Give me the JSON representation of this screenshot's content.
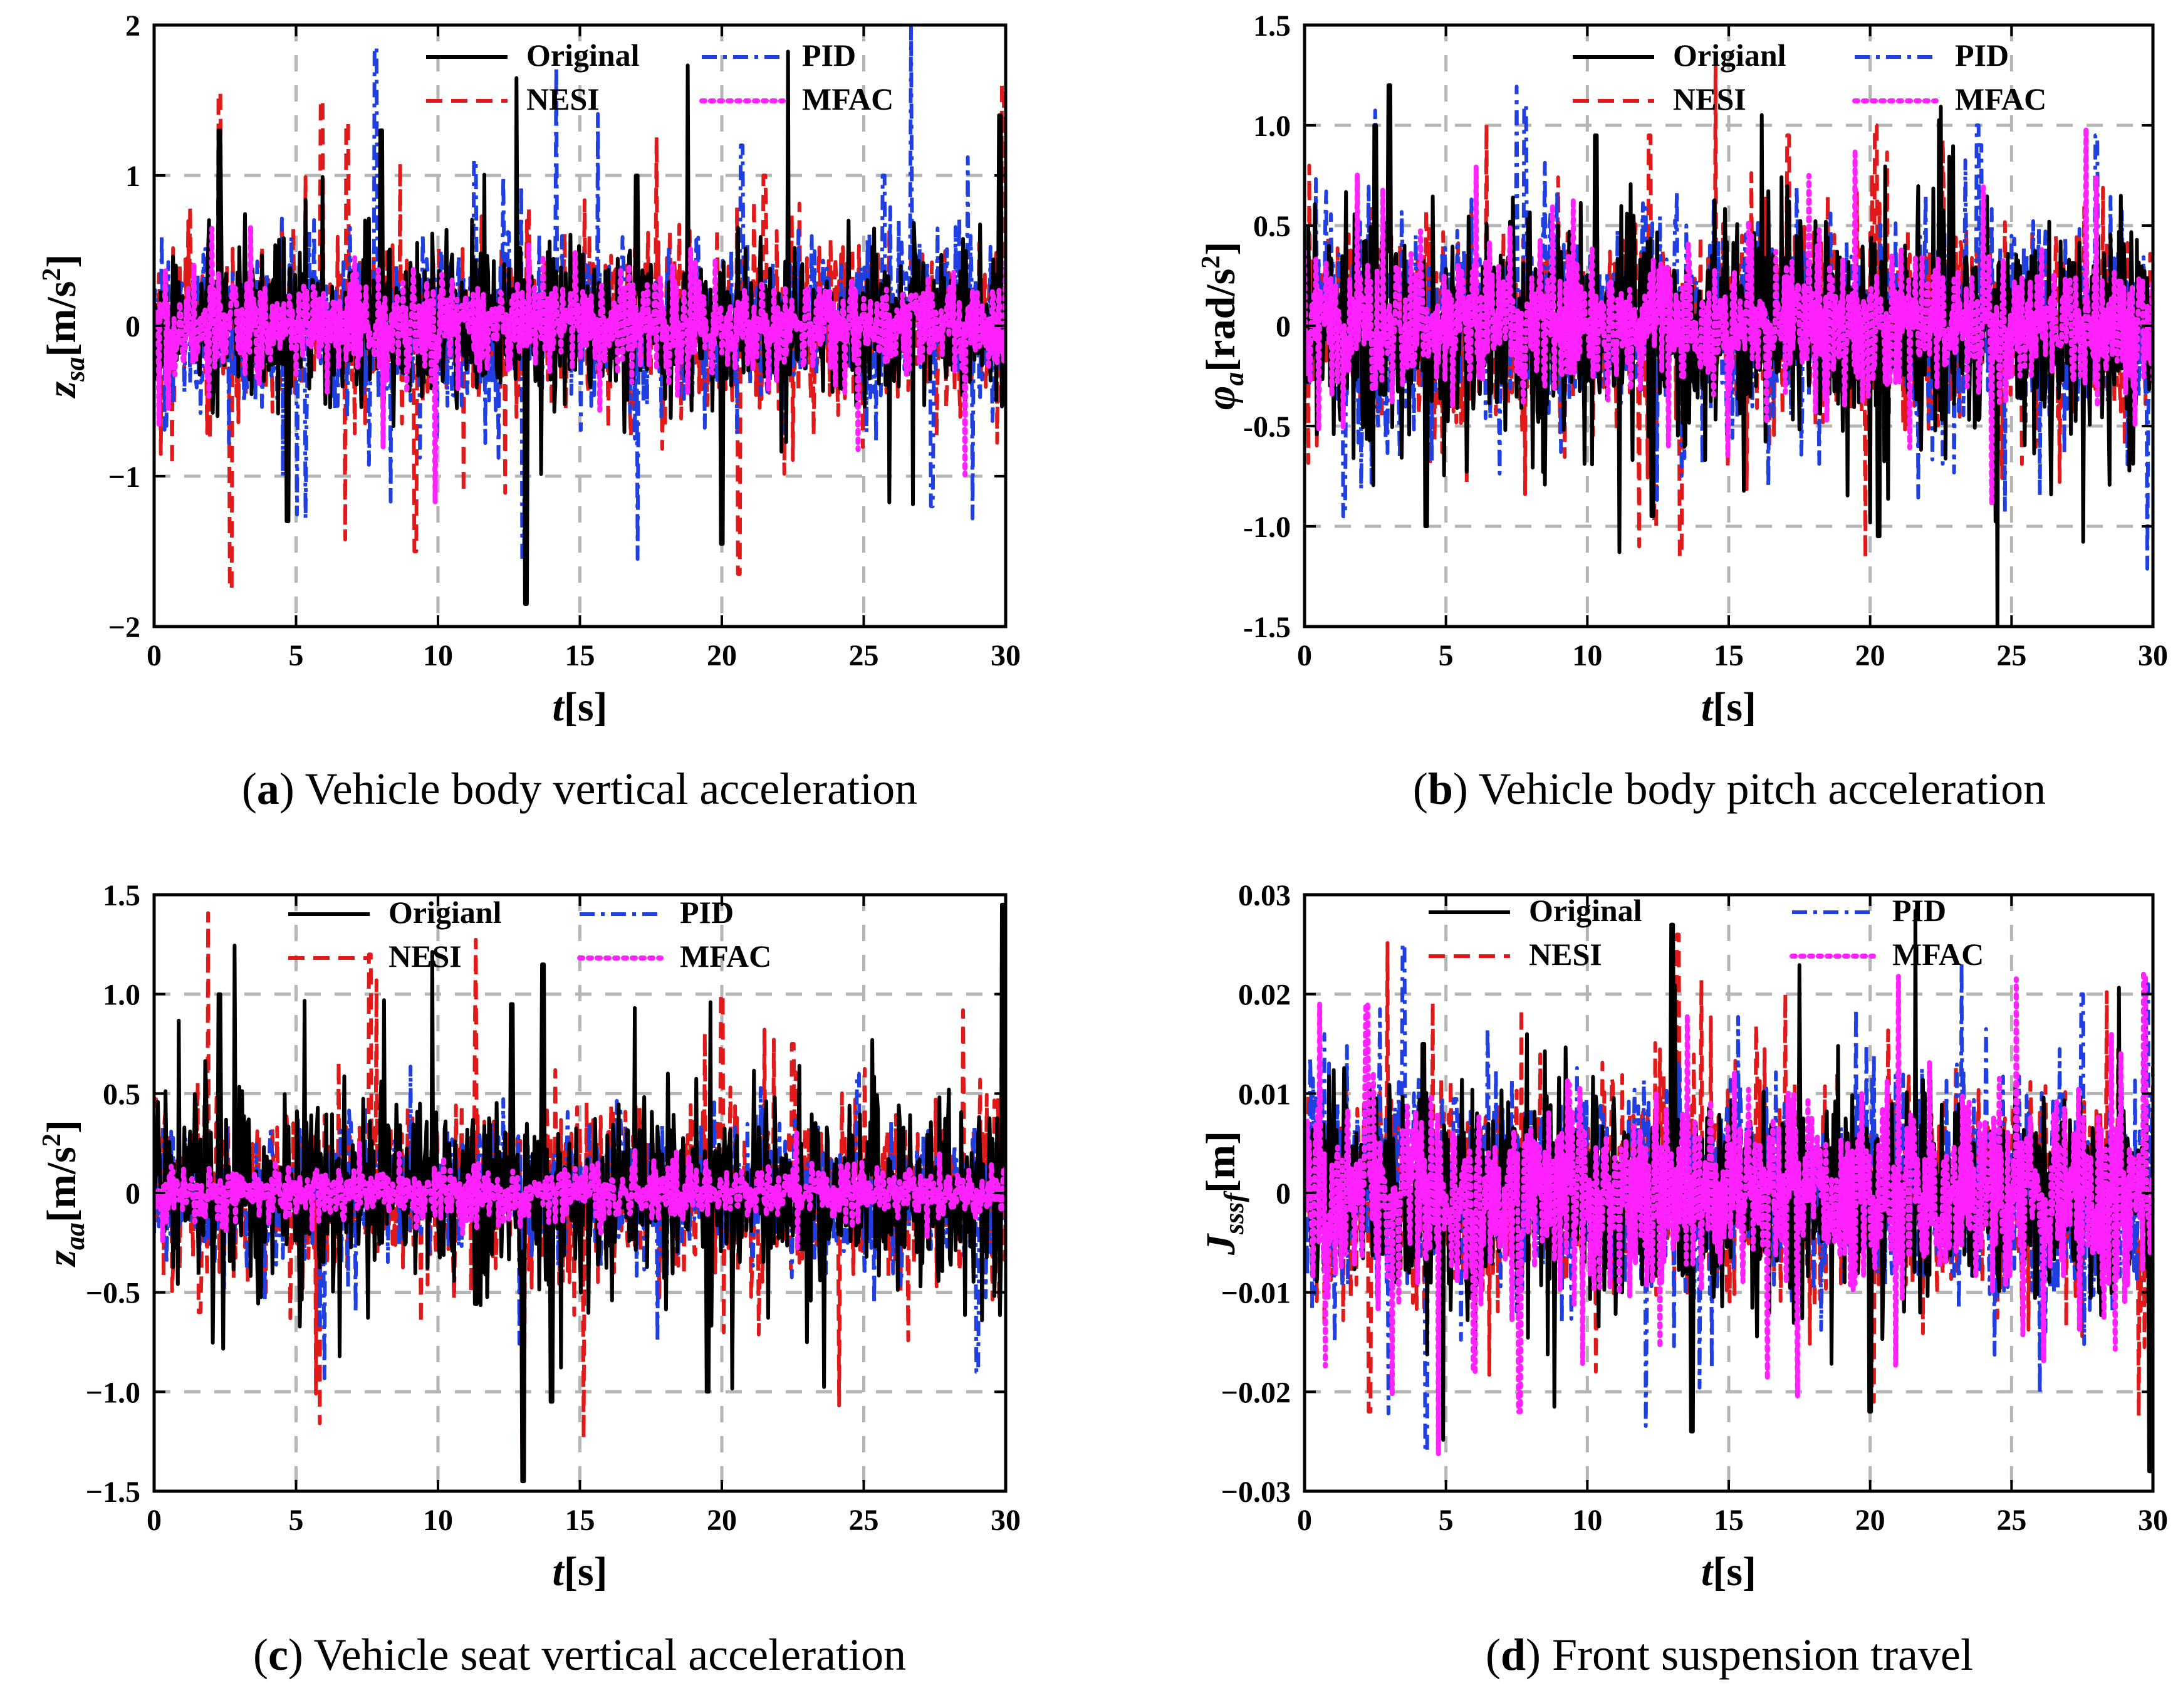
{
  "chart_data": [
    {
      "panel": "a",
      "type": "line",
      "caption": {
        "letter": "a",
        "text": "Vehicle body vertical acceleration"
      },
      "ylabel": {
        "main": "z",
        "sub": "sa",
        "unit": "[m/s",
        "sup": "2",
        "close": "]"
      },
      "xlabel": {
        "main": "t",
        "unit": "[s]"
      },
      "xlim": [
        0,
        30
      ],
      "ylim": [
        -2,
        2
      ],
      "xticks": [
        0,
        5,
        10,
        15,
        20,
        25,
        30
      ],
      "yticks": [
        2,
        1,
        0,
        -1,
        -2
      ],
      "ytick_labels": [
        "2",
        "1",
        "0",
        "−1",
        "−2"
      ],
      "grid": true,
      "legend_placement": "top",
      "series": [
        {
          "name": "Original",
          "color": "#000000",
          "style": "solid",
          "amplitude": 0.45,
          "peaks": [
            [
              2.3,
              1.3
            ],
            [
              4.7,
              -1.3
            ],
            [
              8.0,
              1.3
            ],
            [
              13.1,
              -1.85
            ],
            [
              17.0,
              1.0
            ],
            [
              20.0,
              -1.45
            ],
            [
              29.8,
              1.4
            ]
          ]
        },
        {
          "name": "PID",
          "color": "#1f3fe0",
          "style": "dashdot",
          "amplitude": 0.5,
          "peaks": [
            [
              7.8,
              1.85
            ],
            [
              13.0,
              -1.55
            ],
            [
              11.3,
              1.1
            ],
            [
              20.7,
              1.2
            ],
            [
              25.7,
              1.0
            ],
            [
              27.4,
              -1.2
            ]
          ]
        },
        {
          "name": "NESI",
          "color": "#e01a1a",
          "style": "dashed",
          "amplitude": 0.5,
          "peaks": [
            [
              2.3,
              1.55
            ],
            [
              2.7,
              -1.75
            ],
            [
              5.9,
              1.5
            ],
            [
              6.8,
              1.35
            ],
            [
              9.2,
              -1.5
            ],
            [
              20.6,
              -1.65
            ],
            [
              21.5,
              1.0
            ],
            [
              29.9,
              1.6
            ]
          ]
        },
        {
          "name": "MFAC",
          "color": "#ff22ff",
          "style": "dotted",
          "amplitude": 0.28,
          "peaks": []
        }
      ]
    },
    {
      "panel": "b",
      "type": "line",
      "caption": {
        "letter": "b",
        "text": "Vehicle body pitch acceleration"
      },
      "ylabel": {
        "main": "φ",
        "sub": "a",
        "unit": "[rad/s",
        "sup": "2",
        "close": "]"
      },
      "xlabel": {
        "main": "t",
        "unit": "[s]"
      },
      "xlim": [
        0,
        30
      ],
      "ylim": [
        -1.5,
        1.5
      ],
      "xticks": [
        0,
        5,
        10,
        15,
        20,
        25,
        30
      ],
      "yticks": [
        1.5,
        1.0,
        0.5,
        0,
        -0.5,
        -1.0,
        -1.5
      ],
      "ytick_labels": [
        "1.5",
        "1.0",
        "0.5",
        "0",
        "-0.5",
        "-1.0",
        "-1.5"
      ],
      "grid": true,
      "legend_placement": "top",
      "series": [
        {
          "name": "Origianl",
          "color": "#000000",
          "style": "solid",
          "amplitude": 0.5,
          "peaks": [
            [
              3.0,
              1.2
            ],
            [
              2.5,
              1.0
            ],
            [
              10.3,
              0.95
            ],
            [
              4.3,
              -1.0
            ],
            [
              20.3,
              -1.05
            ],
            [
              12.3,
              -0.95
            ]
          ]
        },
        {
          "name": "PID",
          "color": "#1f3fe0",
          "style": "dashdot",
          "amplitude": 0.45,
          "peaks": [
            [
              7.8,
              1.1
            ],
            [
              1.4,
              -0.95
            ],
            [
              23.8,
              1.0
            ],
            [
              28.0,
              0.95
            ]
          ]
        },
        {
          "name": "NESI",
          "color": "#e01a1a",
          "style": "dashed",
          "amplitude": 0.45,
          "peaks": [
            [
              13.3,
              -1.15
            ],
            [
              12.4,
              -1.0
            ],
            [
              17.1,
              0.95
            ],
            [
              20.2,
              1.0
            ],
            [
              12.2,
              0.95
            ]
          ]
        },
        {
          "name": "MFAC",
          "color": "#ff22ff",
          "style": "dotted",
          "amplitude": 0.3,
          "peaks": []
        }
      ]
    },
    {
      "panel": "c",
      "type": "line",
      "caption": {
        "letter": "c",
        "text": "Vehicle seat vertical acceleration"
      },
      "ylabel": {
        "main": "z",
        "sub": "aa",
        "unit": "[m/s",
        "sup": "2",
        "close": "]"
      },
      "xlabel": {
        "main": "t",
        "unit": "[s]"
      },
      "xlim": [
        0,
        30
      ],
      "ylim": [
        -1.5,
        1.5
      ],
      "xticks": [
        0,
        5,
        10,
        15,
        20,
        25,
        30
      ],
      "yticks": [
        1.5,
        1.0,
        0.5,
        0,
        -0.5,
        -1.0,
        -1.5
      ],
      "ytick_labels": [
        "1.5",
        "1.0",
        "0.5",
        "0",
        "−0.5",
        "−1.0",
        "−1.5"
      ],
      "grid": true,
      "legend_placement": "top",
      "series": [
        {
          "name": "Origianl",
          "color": "#000000",
          "style": "solid",
          "amplitude": 0.4,
          "peaks": [
            [
              2.3,
              1.0
            ],
            [
              13.0,
              -1.45
            ],
            [
              13.7,
              1.15
            ],
            [
              14.0,
              -1.05
            ],
            [
              19.5,
              -1.0
            ],
            [
              29.9,
              1.45
            ],
            [
              12.6,
              0.95
            ]
          ]
        },
        {
          "name": "PID",
          "color": "#1f3fe0",
          "style": "dashdot",
          "amplitude": 0.3,
          "peaks": [
            [
              24.8,
              0.6
            ],
            [
              29.0,
              -0.9
            ]
          ]
        },
        {
          "name": "NESI",
          "color": "#e01a1a",
          "style": "dashed",
          "amplitude": 0.4,
          "peaks": [
            [
              7.6,
              1.2
            ],
            [
              13.0,
              -1.3
            ],
            [
              20.0,
              1.0
            ],
            [
              29.9,
              1.25
            ],
            [
              1.6,
              -0.6
            ],
            [
              22.5,
              0.75
            ]
          ]
        },
        {
          "name": "MFAC",
          "color": "#ff22ff",
          "style": "dotted",
          "amplitude": 0.12,
          "peaks": []
        }
      ]
    },
    {
      "panel": "d",
      "type": "line",
      "caption": {
        "letter": "d",
        "text": "Front suspension travel"
      },
      "ylabel": {
        "main": "J",
        "sub": "sssf",
        "unit": "[m]",
        "sup": "",
        "close": ""
      },
      "xlabel": {
        "main": "t",
        "unit": "[s]"
      },
      "xlim": [
        0,
        30
      ],
      "ylim": [
        -0.03,
        0.03
      ],
      "xticks": [
        0,
        5,
        10,
        15,
        20,
        25,
        30
      ],
      "yticks": [
        0.03,
        0.02,
        0.01,
        0,
        -0.01,
        -0.02,
        -0.03
      ],
      "ytick_labels": [
        "0.03",
        "0.02",
        "0.01",
        "0",
        "−0.01",
        "−0.02",
        "−0.03"
      ],
      "grid": true,
      "legend_placement": "top",
      "series": [
        {
          "name": "Original",
          "color": "#000000",
          "style": "solid",
          "amplitude": 0.009,
          "peaks": [
            [
              13.0,
              0.027
            ],
            [
              13.7,
              -0.024
            ],
            [
              20.0,
              -0.022
            ],
            [
              29.9,
              -0.028
            ],
            [
              4.2,
              0.015
            ]
          ]
        },
        {
          "name": "PID",
          "color": "#1f3fe0",
          "style": "dashdot",
          "amplitude": 0.01,
          "peaks": [
            [
              3.5,
              0.025
            ],
            [
              4.3,
              -0.026
            ],
            [
              27.5,
              0.02
            ],
            [
              29.8,
              0.021
            ]
          ]
        },
        {
          "name": "NESI",
          "color": "#e01a1a",
          "style": "dashed",
          "amplitude": 0.009,
          "peaks": [
            [
              13.2,
              0.026
            ],
            [
              2.3,
              -0.022
            ],
            [
              20.1,
              -0.021
            ]
          ]
        },
        {
          "name": "MFAC",
          "color": "#ff22ff",
          "style": "dotted",
          "amplitude": 0.008,
          "peaks": [
            [
              2.2,
              0.019
            ],
            [
              7.6,
              -0.022
            ],
            [
              29.7,
              0.022
            ],
            [
              6.0,
              -0.018
            ]
          ]
        }
      ]
    }
  ]
}
